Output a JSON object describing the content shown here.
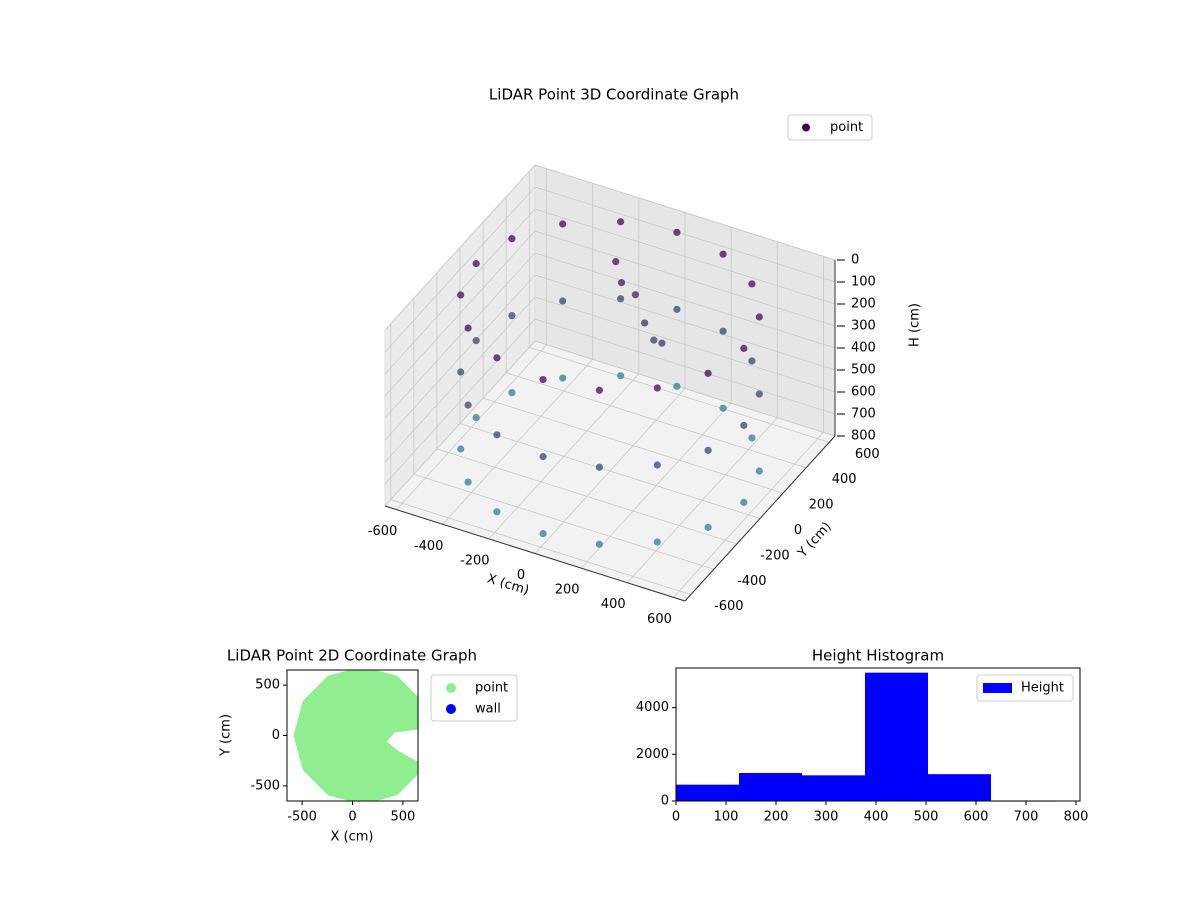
{
  "chart_data": [
    {
      "type": "scatter3d",
      "title": "LiDAR Point 3D Coordinate Graph",
      "xlabel": "X (cm)",
      "ylabel": "Y (cm)",
      "zlabel": "H (cm)",
      "xlim": [
        -650,
        650
      ],
      "ylim": [
        -650,
        650
      ],
      "zlim": [
        0,
        800
      ],
      "z_inverted": true,
      "xticks": [
        -600,
        -400,
        -200,
        0,
        200,
        400,
        600
      ],
      "yticks": [
        -600,
        -400,
        -200,
        0,
        200,
        400,
        600
      ],
      "zticks": [
        0,
        100,
        200,
        300,
        400,
        500,
        600,
        700,
        800
      ],
      "grid": true,
      "legend": "upper right",
      "colormap": [
        "#440154",
        "#2a8a8c"
      ],
      "series": [
        {
          "name": "point",
          "color": "#440154",
          "x": [
            580,
            536,
            410,
            222,
            0,
            -222,
            -410,
            -536,
            -580,
            -536,
            -410,
            -222,
            0,
            222,
            410,
            536,
            580,
            536,
            410,
            222,
            0,
            -222,
            -410,
            -536,
            -580,
            -536,
            -410,
            -222,
            0,
            222,
            410,
            536,
            580,
            536,
            410,
            222,
            0,
            -222,
            -410,
            -536,
            -580,
            -536,
            -410,
            -222,
            0,
            222,
            410,
            536,
            -100,
            -50,
            0,
            50,
            100,
            -150
          ],
          "y": [
            0,
            222,
            410,
            536,
            580,
            536,
            410,
            222,
            0,
            -222,
            -410,
            -536,
            -580,
            -536,
            -410,
            -222,
            0,
            222,
            410,
            536,
            580,
            536,
            410,
            222,
            0,
            -222,
            -410,
            -536,
            -580,
            -536,
            -410,
            -222,
            0,
            222,
            410,
            536,
            580,
            536,
            410,
            222,
            0,
            -222,
            -410,
            -536,
            -580,
            -536,
            -410,
            -222,
            300,
            320,
            300,
            280,
            250,
            350
          ],
          "h": [
            50,
            50,
            50,
            50,
            50,
            50,
            50,
            50,
            50,
            50,
            50,
            50,
            50,
            50,
            50,
            50,
            400,
            400,
            400,
            400,
            400,
            400,
            400,
            400,
            400,
            400,
            400,
            400,
            400,
            400,
            400,
            400,
            750,
            750,
            750,
            750,
            750,
            750,
            750,
            750,
            750,
            750,
            750,
            750,
            750,
            750,
            750,
            750,
            150,
            200,
            300,
            350,
            330,
            100
          ]
        }
      ]
    },
    {
      "type": "scatter",
      "title": "LiDAR Point 2D Coordinate Graph",
      "xlabel": "X (cm)",
      "ylabel": "Y (cm)",
      "xlim": [
        -650,
        650
      ],
      "ylim": [
        -650,
        650
      ],
      "xticks": [
        -500,
        0,
        500
      ],
      "yticks": [
        -500,
        0,
        500
      ],
      "legend": "outside right",
      "series": [
        {
          "name": "point",
          "color": "#90ee90",
          "area": true,
          "x": [
            650,
            420,
            340,
            450,
            650,
            693,
            443,
            100,
            -243,
            -493,
            -585,
            -493,
            -243,
            100,
            443,
            693
          ],
          "y": [
            60,
            30,
            -60,
            -150,
            -260,
            -343,
            -593,
            -685,
            -593,
            -343,
            0,
            343,
            593,
            685,
            593,
            343
          ]
        },
        {
          "name": "wall",
          "color": "#0000ff",
          "x": [],
          "y": []
        }
      ]
    },
    {
      "type": "histogram",
      "title": "Height Histogram",
      "bins": [
        0,
        126,
        252,
        378,
        504,
        630,
        756
      ],
      "counts": [
        700,
        1200,
        1100,
        5500,
        1150,
        10
      ],
      "color": "#0000ff",
      "series_name": "Height",
      "xlim": [
        0,
        808
      ],
      "ylim": [
        0,
        5700
      ],
      "xticks": [
        0,
        100,
        200,
        300,
        400,
        500,
        600,
        700,
        800
      ],
      "yticks": [
        0,
        2000,
        4000
      ],
      "legend": "upper right"
    }
  ]
}
